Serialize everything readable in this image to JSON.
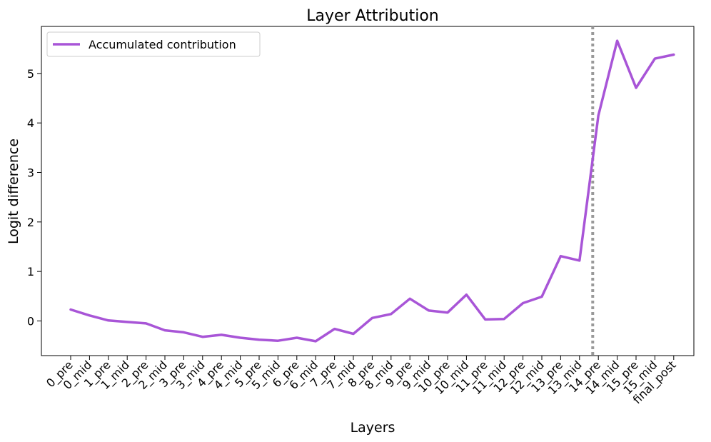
{
  "chart_data": {
    "type": "line",
    "title": "Layer Attribution",
    "xlabel": "Layers",
    "ylabel": "Logit difference",
    "ylim": [
      -0.7,
      5.95
    ],
    "yticks": [
      "0",
      "1",
      "2",
      "3",
      "4",
      "5"
    ],
    "grid": false,
    "legend_position": "top-left",
    "categories": [
      "0_pre",
      "0_mid",
      "1_pre",
      "1_mid",
      "2_pre",
      "2_mid",
      "3_pre",
      "3_mid",
      "4_pre",
      "4_mid",
      "5_pre",
      "5_mid",
      "6_pre",
      "6_mid",
      "7_pre",
      "7_mid",
      "8_pre",
      "8_mid",
      "9_pre",
      "9_mid",
      "10_pre",
      "10_mid",
      "11_pre",
      "11_mid",
      "12_pre",
      "12_mid",
      "13_pre",
      "13_mid",
      "14_pre",
      "14_mid",
      "15_pre",
      "15_mid",
      "final_post"
    ],
    "series": [
      {
        "name": "Accumulated contribution",
        "color": "#a855d7",
        "values": [
          0.23,
          0.11,
          0.01,
          -0.02,
          -0.05,
          -0.19,
          -0.23,
          -0.32,
          -0.28,
          -0.34,
          -0.38,
          -0.4,
          -0.34,
          -0.41,
          -0.16,
          -0.26,
          0.06,
          0.14,
          0.45,
          0.21,
          0.17,
          0.53,
          0.03,
          0.04,
          0.36,
          0.49,
          1.31,
          1.22,
          4.15,
          5.66,
          4.71,
          5.3,
          5.38
        ]
      }
    ],
    "annotations": [
      {
        "type": "vertical_line",
        "style": "dotted",
        "color": "#999999",
        "x": 27.7
      }
    ]
  }
}
